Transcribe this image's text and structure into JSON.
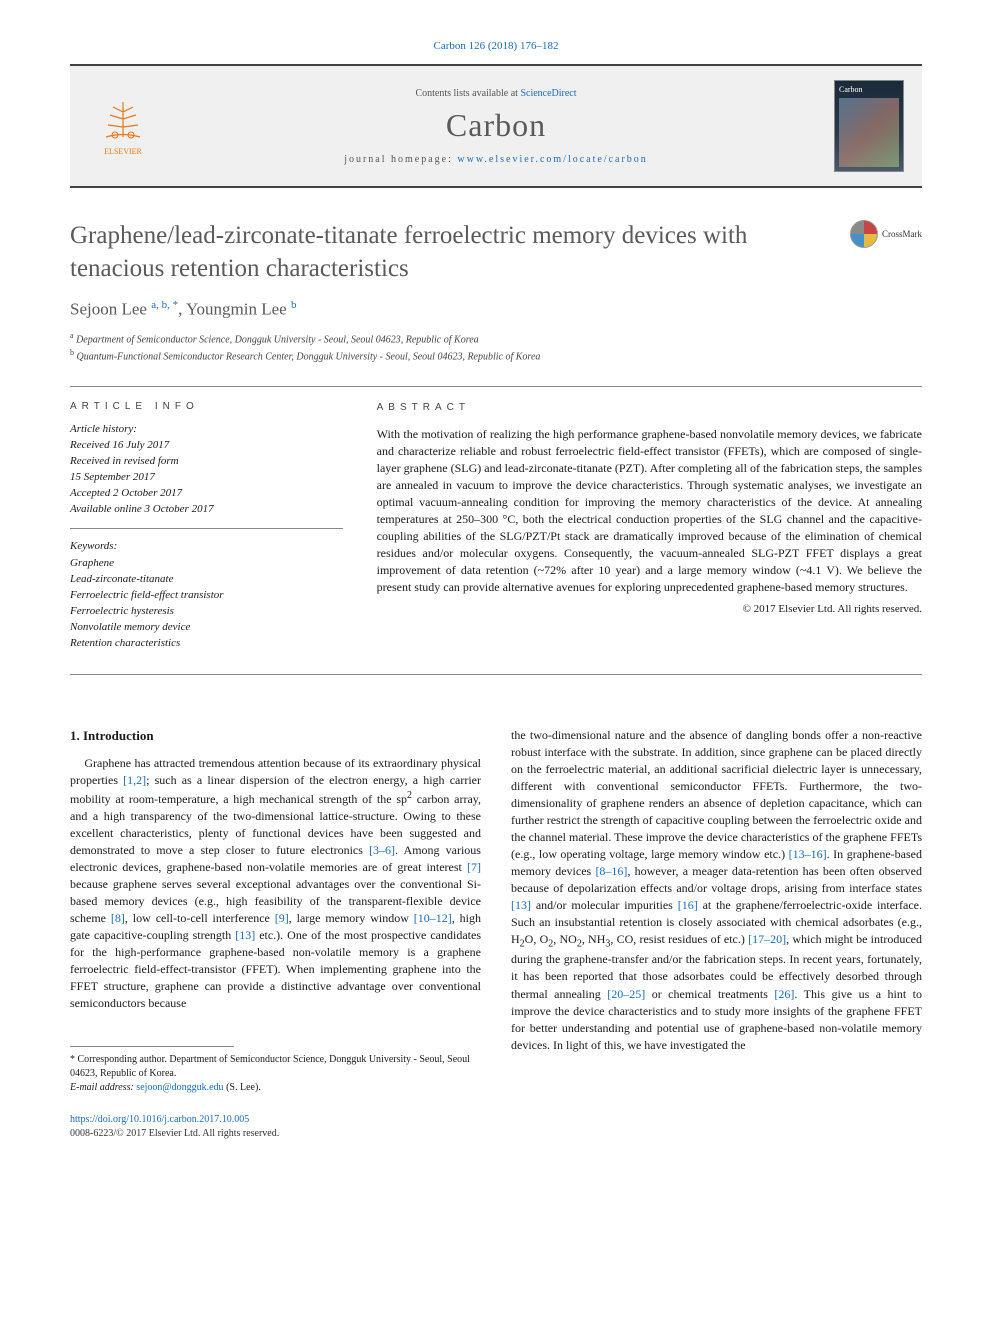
{
  "citation": "Carbon 126 (2018) 176–182",
  "header": {
    "contents_prefix": "Contents lists available at ",
    "contents_link": "ScienceDirect",
    "journal": "Carbon",
    "homepage_prefix": "journal homepage: ",
    "homepage_url": "www.elsevier.com/locate/carbon",
    "publisher": "ELSEVIER"
  },
  "crossmark": "CrossMark",
  "title": "Graphene/lead-zirconate-titanate ferroelectric memory devices with tenacious retention characteristics",
  "authors": {
    "list": "Sejoon Lee",
    "aff1_mark": "a, b, ",
    "star": "*",
    "sep": ", ",
    "author2": "Youngmin Lee",
    "aff2_mark": "b"
  },
  "affiliations": {
    "a": "Department of Semiconductor Science, Dongguk University - Seoul, Seoul 04623, Republic of Korea",
    "b": "Quantum-Functional Semiconductor Research Center, Dongguk University - Seoul, Seoul 04623, Republic of Korea"
  },
  "info": {
    "heading": "ARTICLE INFO",
    "history_label": "Article history:",
    "received": "Received 16 July 2017",
    "revised1": "Received in revised form",
    "revised2": "15 September 2017",
    "accepted": "Accepted 2 October 2017",
    "online": "Available online 3 October 2017",
    "kw_head": "Keywords:",
    "kw": [
      "Graphene",
      "Lead-zirconate-titanate",
      "Ferroelectric field-effect transistor",
      "Ferroelectric hysteresis",
      "Nonvolatile memory device",
      "Retention characteristics"
    ]
  },
  "abstract": {
    "heading": "ABSTRACT",
    "text": "With the motivation of realizing the high performance graphene-based nonvolatile memory devices, we fabricate and characterize reliable and robust ferroelectric field-effect transistor (FFETs), which are composed of single-layer graphene (SLG) and lead-zirconate-titanate (PZT). After completing all of the fabrication steps, the samples are annealed in vacuum to improve the device characteristics. Through systematic analyses, we investigate an optimal vacuum-annealing condition for improving the memory characteristics of the device. At annealing temperatures at 250–300 °C, both the electrical conduction properties of the SLG channel and the capacitive-coupling abilities of the SLG/PZT/Pt stack are dramatically improved because of the elimination of chemical residues and/or molecular oxygens. Consequently, the vacuum-annealed SLG-PZT FFET displays a great improvement of data retention (~72% after 10 year) and a large memory window (~4.1 V). We believe the present study can provide alternative avenues for exploring unprecedented graphene-based memory structures.",
    "copyright": "© 2017 Elsevier Ltd. All rights reserved."
  },
  "body": {
    "heading": "1. Introduction",
    "left": "Graphene has attracted tremendous attention because of its extraordinary physical properties [1,2]; such as a linear dispersion of the electron energy, a high carrier mobility at room-temperature, a high mechanical strength of the sp² carbon array, and a high transparency of the two-dimensional lattice-structure. Owing to these excellent characteristics, plenty of functional devices have been suggested and demonstrated to move a step closer to future electronics [3–6]. Among various electronic devices, graphene-based non-volatile memories are of great interest [7] because graphene serves several exceptional advantages over the conventional Si-based memory devices (e.g., high feasibility of the transparent-flexible device scheme [8], low cell-to-cell interference [9], large memory window [10–12], high gate capacitive-coupling strength [13] etc.). One of the most prospective candidates for the high-performance graphene-based non-volatile memory is a graphene ferroelectric field-effect-transistor (FFET). When implementing graphene into the FFET structure, graphene can provide a distinctive advantage over conventional semiconductors because",
    "right": "the two-dimensional nature and the absence of dangling bonds offer a non-reactive robust interface with the substrate. In addition, since graphene can be placed directly on the ferroelectric material, an additional sacrificial dielectric layer is unnecessary, different with conventional semiconductor FFETs. Furthermore, the two-dimensionality of graphene renders an absence of depletion capacitance, which can further restrict the strength of capacitive coupling between the ferroelectric oxide and the channel material. These improve the device characteristics of the graphene FFETs (e.g., low operating voltage, large memory window etc.) [13–16]. In graphene-based memory devices [8–16], however, a meager data-retention has been often observed because of depolarization effects and/or voltage drops, arising from interface states [13] and/or molecular impurities [16] at the graphene/ferroelectric-oxide interface. Such an insubstantial retention is closely associated with chemical adsorbates (e.g., H₂O, O₂, NO₂, NH₃, CO, resist residues of etc.) [17–20], which might be introduced during the graphene-transfer and/or the fabrication steps. In recent years, fortunately, it has been reported that those adsorbates could be effectively desorbed through thermal annealing [20–25] or chemical treatments [26]. This give us a hint to improve the device characteristics and to study more insights of the graphene FFET for better understanding and potential use of graphene-based non-volatile memory devices. In light of this, we have investigated the"
  },
  "footnote": {
    "corr": "* Corresponding author. Department of Semiconductor Science, Dongguk University - Seoul, Seoul 04623, Republic of Korea.",
    "email_label": "E-mail address: ",
    "email": "sejoon@dongguk.edu",
    "email_suffix": " (S. Lee)."
  },
  "footer": {
    "doi": "https://doi.org/10.1016/j.carbon.2017.10.005",
    "issn": "0008-6223/© 2017 Elsevier Ltd. All rights reserved."
  },
  "colors": {
    "link": "#1a6bb8",
    "heading": "#5a5a5a",
    "rule": "#888888",
    "orange": "#e67817"
  }
}
